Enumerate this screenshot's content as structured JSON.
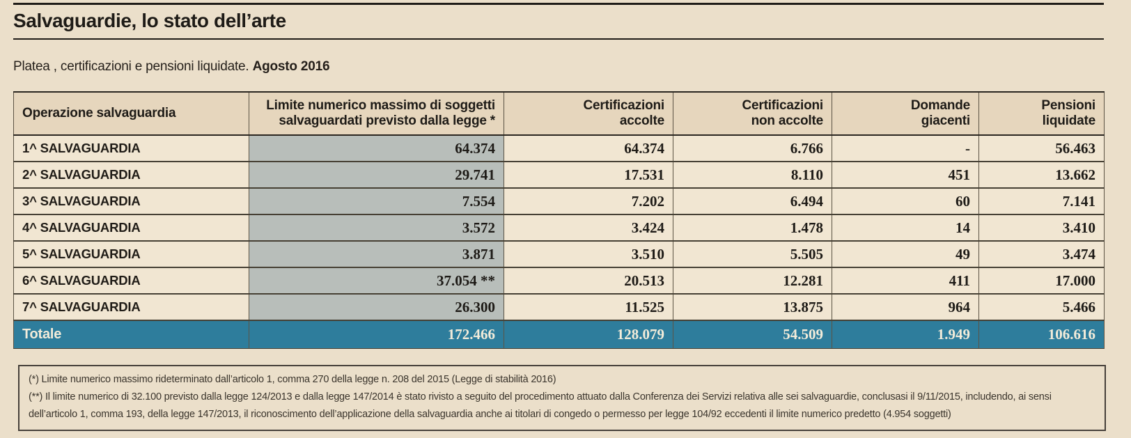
{
  "header": {
    "title": "Salvaguardie, lo stato dell’arte",
    "subtitle_prefix": "Platea , certificazioni e pensioni liquidate. ",
    "subtitle_date": "Agosto 2016"
  },
  "chart_data": {
    "type": "table",
    "title": "Salvaguardie, lo stato dell’arte",
    "subtitle": "Platea , certificazioni e pensioni liquidate. Agosto 2016",
    "columns": [
      "Operazione salvaguardia",
      "Limite numerico massimo di soggetti\nsalvaguardati previsto dalla legge *",
      "Certificazioni\naccolte",
      "Certificazioni\nnon accolte",
      "Domande\ngiacenti",
      "Pensioni\nliquidate"
    ],
    "rows": [
      [
        "1^ SALVAGUARDIA",
        "64.374",
        "64.374",
        "6.766",
        "-",
        "56.463"
      ],
      [
        "2^ SALVAGUARDIA",
        "29.741",
        "17.531",
        "8.110",
        "451",
        "13.662"
      ],
      [
        "3^ SALVAGUARDIA",
        "7.554",
        "7.202",
        "6.494",
        "60",
        "7.141"
      ],
      [
        "4^ SALVAGUARDIA",
        "3.572",
        "3.424",
        "1.478",
        "14",
        "3.410"
      ],
      [
        "5^ SALVAGUARDIA",
        "3.871",
        "3.510",
        "5.505",
        "49",
        "3.474"
      ],
      [
        "6^ SALVAGUARDIA",
        "37.054 **",
        "20.513",
        "12.281",
        "411",
        "17.000"
      ],
      [
        "7^ SALVAGUARDIA",
        "26.300",
        "11.525",
        "13.875",
        "964",
        "5.466"
      ]
    ],
    "total_row": [
      "Totale",
      "172.466",
      "128.079",
      "54.509",
      "1.949",
      "106.616"
    ]
  },
  "footnotes": [
    "(*) Limite numerico massimo rideterminato dall’articolo 1, comma 270 della legge n. 208 del 2015 (Legge di stabilità 2016)",
    "(**) Il limite numerico di 32.100 previsto dalla legge 124/2013 e dalla legge 147/2014 è stato rivisto a seguito del procedimento attuato dalla Conferenza dei Servizi relativa alle sei salvaguardie, conclusasi il 9/11/2015, includendo, ai sensi dell’articolo 1, comma 193, della legge 147/2013, il riconoscimento dell’applicazione della salvaguardia anche ai titolari di congedo o permesso per legge 104/92 eccedenti il limite numerico predetto (4.954 soggetti)"
  ],
  "colors": {
    "background": "#ebdfca",
    "header_band": "#e6d6bd",
    "highlight_column_gray": "#b8beba",
    "total_row_teal": "#2e7d9c",
    "text": "#1e1b17"
  }
}
